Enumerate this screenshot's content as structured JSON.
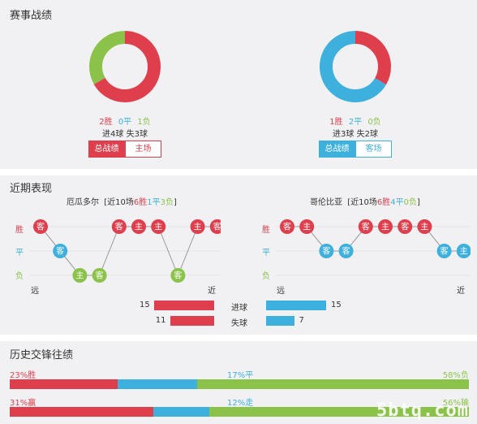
{
  "record": {
    "title": "赛事战绩",
    "left": {
      "win": "2胜",
      "draw": "0平",
      "loss": "1负",
      "goals": "进4球  失3球",
      "win_count": 2,
      "draw_count": 0,
      "loss_count": 1,
      "tab_active": "总战绩",
      "tab_other": "主场"
    },
    "right": {
      "win": "1胜",
      "draw": "2平",
      "loss": "0负",
      "goals": "进3球  失2球",
      "win_count": 1,
      "draw_count": 2,
      "loss_count": 0,
      "tab_active": "总战绩",
      "tab_other": "客场"
    }
  },
  "recent": {
    "title": "近期表现",
    "row_labels": {
      "win": "胜",
      "draw": "平",
      "loss": "负"
    },
    "axis": {
      "far": "远",
      "near": "近"
    },
    "left": {
      "team": "厄瓜多尔",
      "summary_prefix": "[近10场",
      "w": "6胜",
      "d": "1平",
      "l": "3负",
      "summary_suffix": "]",
      "games": [
        {
          "r": "W",
          "v": "客"
        },
        {
          "r": "D",
          "v": "客"
        },
        {
          "r": "L",
          "v": "主"
        },
        {
          "r": "L",
          "v": "客"
        },
        {
          "r": "W",
          "v": "客"
        },
        {
          "r": "W",
          "v": "主"
        },
        {
          "r": "W",
          "v": "主"
        },
        {
          "r": "L",
          "v": "客"
        },
        {
          "r": "W",
          "v": "主"
        },
        {
          "r": "W",
          "v": "客"
        }
      ]
    },
    "right": {
      "team": "哥伦比亚",
      "summary_prefix": "[近10场",
      "w": "6胜",
      "d": "4平",
      "l": "0负",
      "summary_suffix": "]",
      "games": [
        {
          "r": "W",
          "v": "客"
        },
        {
          "r": "W",
          "v": "主"
        },
        {
          "r": "D",
          "v": "客"
        },
        {
          "r": "D",
          "v": "客"
        },
        {
          "r": "W",
          "v": "客"
        },
        {
          "r": "W",
          "v": "主"
        },
        {
          "r": "W",
          "v": "客"
        },
        {
          "r": "W",
          "v": "主"
        },
        {
          "r": "D",
          "v": "客"
        },
        {
          "r": "D",
          "v": "主"
        }
      ]
    },
    "stats": {
      "scored_label": "进球",
      "conceded_label": "失球",
      "left_scored": "15",
      "left_conceded": "11",
      "right_scored": "15",
      "right_conceded": "7",
      "left_scored_val": 15,
      "left_conceded_val": 11,
      "right_scored_val": 15,
      "right_conceded_val": 7
    }
  },
  "h2h": {
    "title": "历史交锋往绩",
    "row1": {
      "left": "23%胜",
      "mid": "17%平",
      "right": "58%负",
      "a": 23,
      "b": 17,
      "c": 58
    },
    "row2": {
      "left": "31%赢",
      "mid": "12%走",
      "right": "56%输",
      "a": 31,
      "b": 12,
      "c": 56
    }
  },
  "watermark": "5btq.com",
  "colors": {
    "red": "#df3f4d",
    "blue": "#3db0dd",
    "green": "#8bc34a",
    "grey": "#999999"
  }
}
